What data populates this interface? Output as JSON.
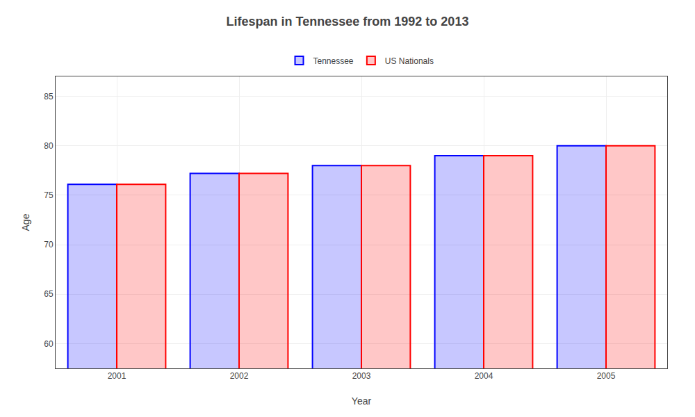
{
  "chart_data": {
    "type": "bar",
    "title": "Lifespan in Tennessee from 1992 to 2013",
    "xlabel": "Year",
    "ylabel": "Age",
    "categories": [
      "2001",
      "2002",
      "2003",
      "2004",
      "2005"
    ],
    "series": [
      {
        "name": "Tennessee",
        "color": "#0000ff",
        "values": [
          76.1,
          77.2,
          78.0,
          79.0,
          80.0
        ]
      },
      {
        "name": "US Nationals",
        "color": "#ff0000",
        "values": [
          76.1,
          77.2,
          78.0,
          79.0,
          80.0
        ]
      }
    ],
    "ylim": [
      57.5,
      87
    ],
    "yticks": [
      60,
      65,
      70,
      75,
      80,
      85
    ],
    "grid": true,
    "legend": "top"
  }
}
